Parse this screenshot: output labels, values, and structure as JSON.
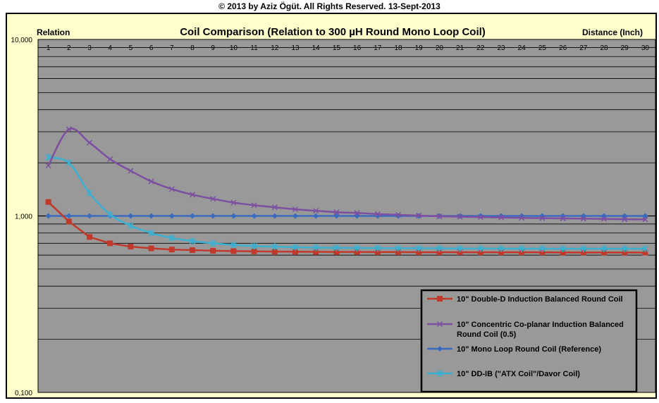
{
  "copyright": "© 2013 by Aziz Ögüt. All Rights Reserved. 13-Sept-2013",
  "chart_data": {
    "type": "line",
    "title": "Coil Comparison (Relation to 300 µH Round Mono Loop Coil)",
    "ylabel": "Relation",
    "xlabel": "Distance  (Inch)",
    "y_scale": "log",
    "ylim": [
      0.1,
      10
    ],
    "y_tick_labels": [
      "10,000",
      "1,000",
      "0,100"
    ],
    "x": [
      1,
      2,
      3,
      4,
      5,
      6,
      7,
      8,
      9,
      10,
      11,
      12,
      13,
      14,
      15,
      16,
      17,
      18,
      19,
      20,
      21,
      22,
      23,
      24,
      25,
      26,
      27,
      28,
      29,
      30
    ],
    "x_tick_labels": [
      "1",
      "2",
      "3",
      "4",
      "5",
      "6",
      "7",
      "8",
      "9",
      "10",
      "11",
      "12",
      "13",
      "14",
      "15",
      "16",
      "17",
      "18",
      "19",
      "20",
      "21",
      "22",
      "23",
      "24",
      "25",
      "26",
      "27",
      "28",
      "29",
      "30"
    ],
    "grid": true,
    "legend_position": "bottom-right",
    "series": [
      {
        "name": "10\" Double-D Induction Balanced Round Coil",
        "color": "#c0392b",
        "marker": "square",
        "values": [
          1.2,
          0.93,
          0.76,
          0.7,
          0.67,
          0.655,
          0.645,
          0.64,
          0.635,
          0.632,
          0.63,
          0.628,
          0.627,
          0.626,
          0.625,
          0.625,
          0.624,
          0.624,
          0.623,
          0.623,
          0.623,
          0.622,
          0.622,
          0.622,
          0.622,
          0.621,
          0.621,
          0.621,
          0.621,
          0.62
        ]
      },
      {
        "name": "10\" Concentric Co-planar Induction Balanced Round Coil (0.5)",
        "color": "#7d4fa0",
        "marker": "x",
        "values": [
          1.93,
          3.1,
          2.6,
          2.1,
          1.8,
          1.57,
          1.42,
          1.32,
          1.25,
          1.19,
          1.15,
          1.12,
          1.09,
          1.07,
          1.05,
          1.04,
          1.025,
          1.015,
          1.005,
          0.995,
          0.99,
          0.985,
          0.98,
          0.975,
          0.972,
          0.968,
          0.965,
          0.962,
          0.958,
          0.955
        ]
      },
      {
        "name": "10\" Mono Loop Round Coil (Reference)",
        "color": "#3b6bbf",
        "marker": "diamond",
        "values": [
          1,
          1,
          1,
          1,
          1,
          1,
          1,
          1,
          1,
          1,
          1,
          1,
          1,
          1,
          1,
          1,
          1,
          1,
          1,
          1,
          1,
          1,
          1,
          1,
          1,
          1,
          1,
          1,
          1,
          1
        ]
      },
      {
        "name": "10\" DD-IB (\"ATX Coil\"/Davor Coil)",
        "color": "#3bb0d0",
        "marker": "star",
        "values": [
          2.15,
          2.0,
          1.35,
          1.02,
          0.88,
          0.8,
          0.75,
          0.72,
          0.7,
          0.685,
          0.675,
          0.67,
          0.665,
          0.662,
          0.66,
          0.658,
          0.657,
          0.656,
          0.655,
          0.655,
          0.654,
          0.654,
          0.653,
          0.653,
          0.653,
          0.652,
          0.652,
          0.652,
          0.652,
          0.652
        ]
      }
    ]
  },
  "legend": {
    "items": [
      {
        "line1": "10\" Double-D Induction Balanced Round Coil",
        "line2": ""
      },
      {
        "line1": "10\" Concentric Co-planar Induction Balanced",
        "line2": "Round Coil (0.5)"
      },
      {
        "line1": "10\" Mono Loop Round Coil (Reference)",
        "line2": ""
      },
      {
        "line1": "10\" DD-IB (\"ATX Coil\"/Davor Coil)",
        "line2": ""
      }
    ]
  }
}
